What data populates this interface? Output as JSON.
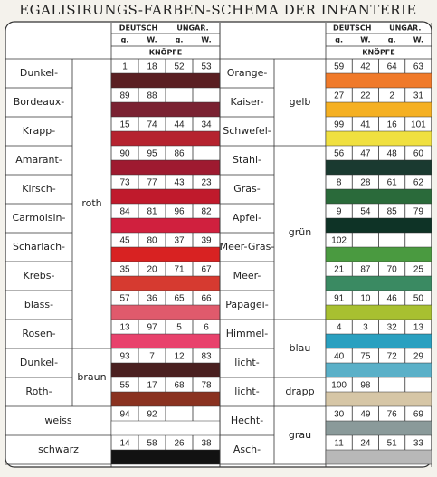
{
  "title": "EGALISIRUNGS-FARBEN-SCHEMA DER INFANTERIE",
  "left": {
    "header": {
      "deutsch": "DEUTSCH",
      "ungar": "UNGAR.",
      "cols": [
        "g.",
        "W.",
        "g.",
        "W."
      ],
      "knoepfe": "KNÖPFE"
    },
    "sections": [
      {
        "label": "roth",
        "rows": [
          {
            "name": "Dunkel-",
            "buttons": [
              1,
              18,
              52,
              53
            ],
            "color": "#5a1f22"
          },
          {
            "name": "Bordeaux-",
            "buttons": [
              89,
              88
            ],
            "color": "#7a2232"
          },
          {
            "name": "Krapp-",
            "buttons": [
              15,
              74,
              44,
              34
            ],
            "color": "#b5232f"
          },
          {
            "name": "Amarant-",
            "buttons": [
              90,
              95,
              86
            ],
            "color": "#9e1a30"
          },
          {
            "name": "Kirsch-",
            "buttons": [
              73,
              77,
              43,
              23
            ],
            "color": "#c01a2c"
          },
          {
            "name": "Carmoisin-",
            "buttons": [
              84,
              81,
              96,
              82
            ],
            "color": "#d0203e"
          },
          {
            "name": "Scharlach-",
            "buttons": [
              45,
              80,
              37,
              39
            ],
            "color": "#d82222"
          },
          {
            "name": "Krebs-",
            "buttons": [
              35,
              20,
              71,
              67
            ],
            "color": "#d63a30"
          },
          {
            "name": "blass-",
            "buttons": [
              57,
              36,
              65,
              66
            ],
            "color": "#e05a6c"
          },
          {
            "name": "Rosen-",
            "buttons": [
              13,
              97,
              5,
              6
            ],
            "color": "#e8426c"
          }
        ]
      },
      {
        "label": "braun",
        "rows": [
          {
            "name": "Dunkel-",
            "buttons": [
              93,
              7,
              12,
              83
            ],
            "color": "#4a2020"
          },
          {
            "name": "Roth-",
            "buttons": [
              55,
              17,
              68,
              78
            ],
            "color": "#8a3220"
          }
        ]
      },
      {
        "rows": [
          {
            "name": "weiss",
            "buttons": [
              94,
              92
            ],
            "color": "#ffffff"
          }
        ]
      },
      {
        "rows": [
          {
            "name": "schwarz",
            "buttons": [
              14,
              58,
              26,
              38
            ],
            "color": "#121212"
          }
        ]
      }
    ]
  },
  "right": {
    "header": {
      "deutsch": "DEUTSCH",
      "ungar": "UNGAR.",
      "cols": [
        "g.",
        "W.",
        "g.",
        "W."
      ],
      "knoepfe": "KNÖPFE"
    },
    "sections": [
      {
        "label": "gelb",
        "rows": [
          {
            "name": "Orange-",
            "buttons": [
              59,
              42,
              64,
              63
            ],
            "color": "#f07a2a"
          },
          {
            "name": "Kaiser-",
            "buttons": [
              27,
              22,
              2,
              31
            ],
            "color": "#f5b022"
          },
          {
            "name": "Schwefel-",
            "buttons": [
              99,
              41,
              16,
              101
            ],
            "color": "#f0e040"
          }
        ]
      },
      {
        "label": "grün",
        "rows": [
          {
            "name": "Stahl-",
            "buttons": [
              56,
              47,
              48,
              60
            ],
            "color": "#1a3a30"
          },
          {
            "name": "Gras-",
            "buttons": [
              8,
              28,
              61,
              62
            ],
            "color": "#2a6a3a"
          },
          {
            "name": "Apfel-",
            "buttons": [
              9,
              54,
              85,
              79
            ],
            "color": "#0e3326"
          },
          {
            "name": "Meer-Gras-",
            "buttons": [
              102
            ],
            "color": "#4a9a40"
          },
          {
            "name": "Meer-",
            "buttons": [
              21,
              87,
              70,
              25
            ],
            "color": "#3a8a62"
          },
          {
            "name": "Papagei-",
            "buttons": [
              91,
              10,
              46,
              50
            ],
            "color": "#a8c030"
          }
        ]
      },
      {
        "label": "blau",
        "rows": [
          {
            "name": "Himmel-",
            "buttons": [
              4,
              3,
              32,
              13
            ],
            "color": "#2aa0c0"
          },
          {
            "name": "licht-",
            "buttons": [
              40,
              75,
              72,
              29
            ],
            "color": "#5ab0c8"
          }
        ]
      },
      {
        "label": "drapp",
        "rows": [
          {
            "name": "licht-",
            "buttons": [
              100,
              98
            ],
            "color": "#d6c6a6"
          }
        ]
      },
      {
        "label": "grau",
        "rows": [
          {
            "name": "Hecht-",
            "buttons": [
              30,
              49,
              76,
              69
            ],
            "color": "#8a9a9a"
          },
          {
            "name": "Asch-",
            "buttons": [
              11,
              24,
              51,
              33
            ],
            "color": "#b8b8b8"
          }
        ]
      }
    ]
  }
}
